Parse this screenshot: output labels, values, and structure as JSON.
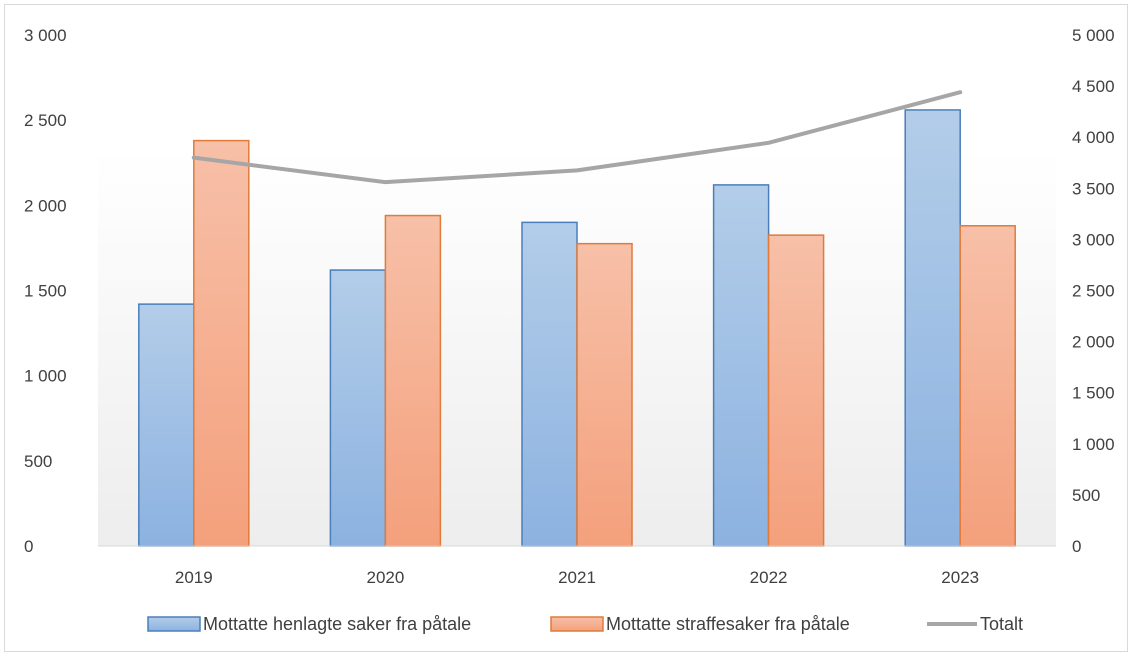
{
  "chart_data": {
    "type": "bar",
    "categories": [
      "2019",
      "2020",
      "2021",
      "2022",
      "2023"
    ],
    "series": [
      {
        "name": "Mottatte henlagte saker fra påtale",
        "type": "bar",
        "axis": "left",
        "values": [
          1420,
          1620,
          1900,
          2120,
          2560
        ],
        "color": "#8fb4e3"
      },
      {
        "name": "Mottatte straffesaker fra påtale",
        "type": "bar",
        "axis": "left",
        "values": [
          2380,
          1940,
          1775,
          1825,
          1880
        ],
        "color": "#f4a582"
      },
      {
        "name": "Totalt",
        "type": "line",
        "axis": "right",
        "values": [
          3800,
          3560,
          3675,
          3945,
          4440
        ],
        "color": "#a6a6a6"
      }
    ],
    "left_axis": {
      "ylim": [
        0,
        3000
      ],
      "ticks": [
        "0",
        "500",
        "1 000",
        "1 500",
        "2 000",
        "2 500",
        "3 000"
      ]
    },
    "right_axis": {
      "ylim": [
        0,
        5000
      ],
      "ticks": [
        "0",
        "500",
        "1 000",
        "1 500",
        "2 000",
        "2 500",
        "3 000",
        "3 500",
        "4 000",
        "4 500",
        "5 000"
      ]
    },
    "legend_position": "bottom",
    "grid": false
  }
}
